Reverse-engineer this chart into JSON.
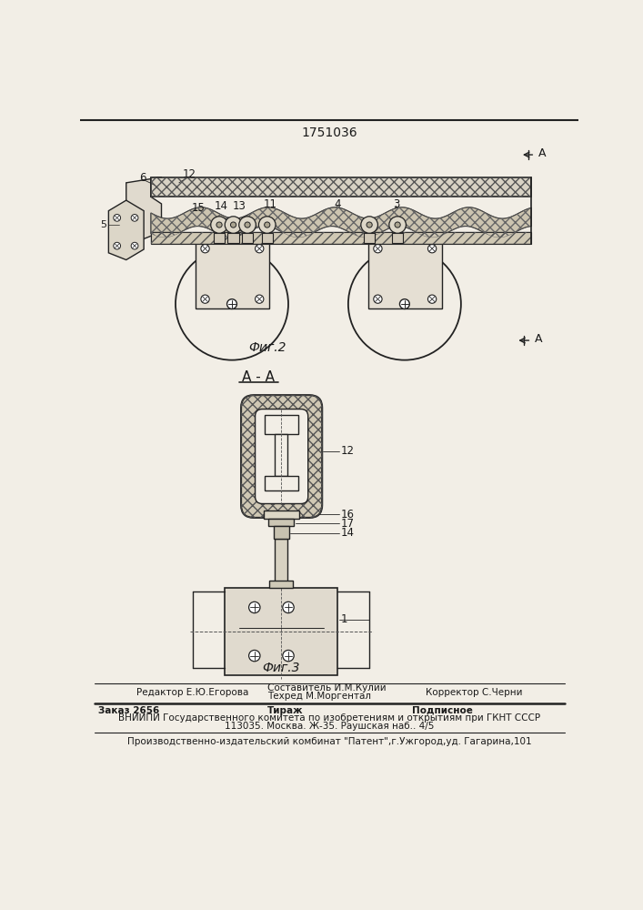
{
  "patent_number": "1751036",
  "fig2_label": "Фиг.2",
  "fig3_label": "Фиг.3",
  "section_label": "А - А",
  "arrow_label_A": "A",
  "editor_line": "Редактор Е.Ю.Егорова",
  "composer_line1": "Составитель И.М.Кулий",
  "composer_line2": "Техред М.Моргентал",
  "corrector_line": "Корректор С.Черни",
  "order_line": "Заказ 2656",
  "tirazh_line": "Тираж",
  "podpisnoe_line": "Подписное",
  "vniip_line": "ВНИИПИ Государственного комитета по изобретениям и открытиям при ГКНТ СССР",
  "address_line": "113035. Москва. Ж-35. Раушская наб.. 4/5",
  "production_line": "Производственно-издательский комбинат \"Патент\",г.Ужгород,уд. Гагарина,101",
  "bg_color": "#f2eee6",
  "line_color": "#222222",
  "text_color": "#1a1a1a"
}
